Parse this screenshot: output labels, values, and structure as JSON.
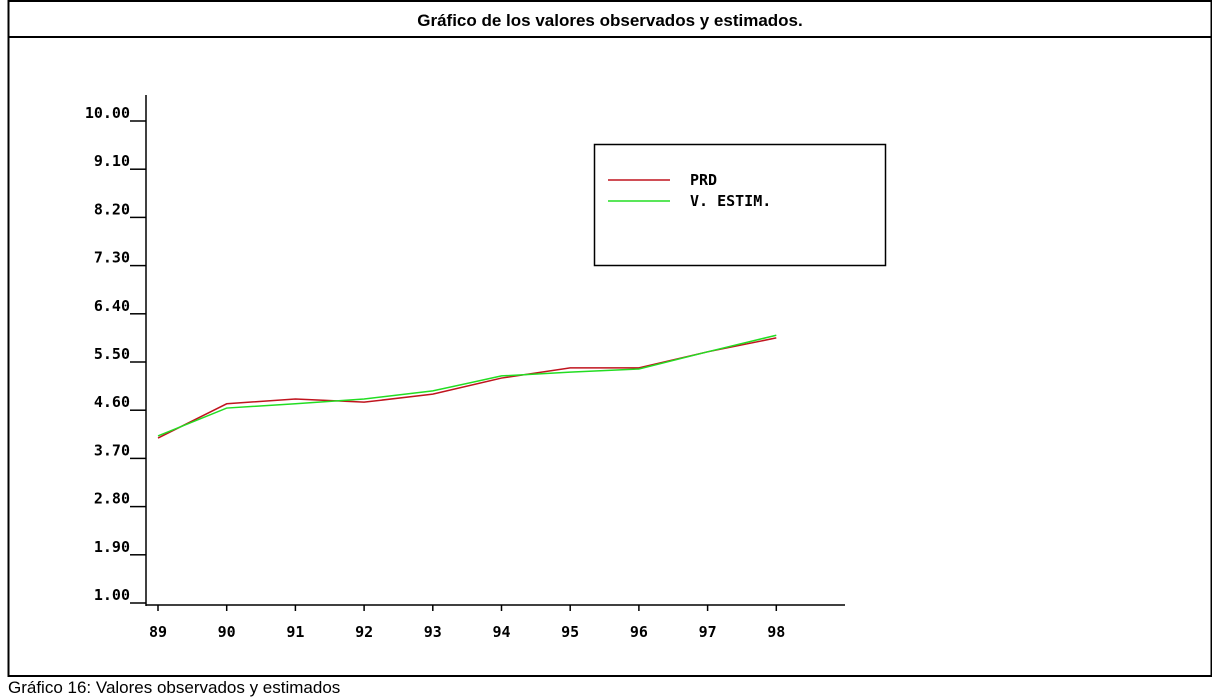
{
  "chart_data": {
    "type": "line",
    "title": "Gráfico de los valores observados y estimados.",
    "categories": [
      "89",
      "90",
      "91",
      "92",
      "93",
      "94",
      "95",
      "96",
      "97",
      "98"
    ],
    "series": [
      {
        "name": "PRD",
        "color": "#c0141e",
        "values": [
          4.08,
          4.72,
          4.81,
          4.75,
          4.9,
          5.2,
          5.39,
          5.39,
          5.69,
          5.95
        ]
      },
      {
        "name": "V. ESTIM.",
        "color": "#22dd22",
        "values": [
          4.12,
          4.64,
          4.72,
          4.81,
          4.96,
          5.24,
          5.31,
          5.37,
          5.69,
          6.0
        ]
      }
    ],
    "ylim": [
      1,
      10
    ],
    "yticks": [
      {
        "value": 1,
        "label": "1.00"
      },
      {
        "value": 1.9,
        "label": "1.90"
      },
      {
        "value": 2.8,
        "label": "2.80"
      },
      {
        "value": 3.7,
        "label": "3.70"
      },
      {
        "value": 4.6,
        "label": "4.60"
      },
      {
        "value": 5.5,
        "label": "5.50"
      },
      {
        "value": 6.4,
        "label": "6.40"
      },
      {
        "value": 7.3,
        "label": "7.30"
      },
      {
        "value": 8.2,
        "label": "8.20"
      },
      {
        "value": 9.1,
        "label": "9.10"
      },
      {
        "value": 10,
        "label": "10.00"
      }
    ]
  },
  "caption": "Gráfico 16: Valores observados y estimados"
}
